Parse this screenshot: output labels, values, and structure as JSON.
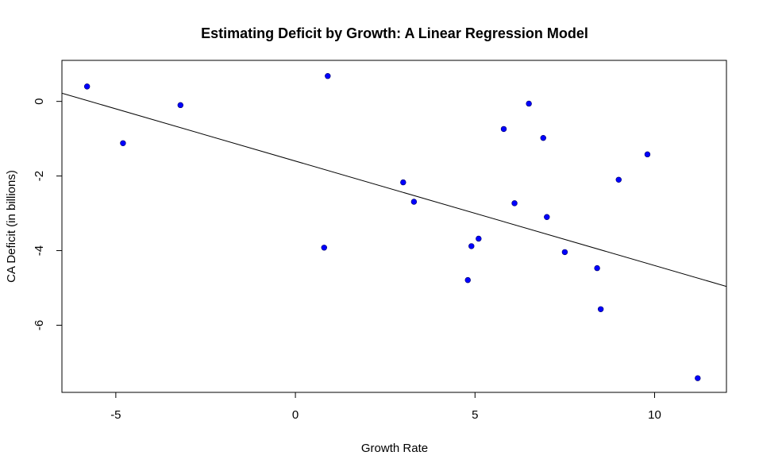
{
  "chart_data": {
    "type": "scatter",
    "title": "Estimating Deficit by Growth: A Linear Regression Model",
    "xlabel": "Growth Rate",
    "ylabel": "CA Deficit (in billions)",
    "xlim": [
      -6.5,
      12
    ],
    "ylim": [
      -7.8,
      1.1
    ],
    "x_ticks": [
      -5,
      0,
      5,
      10
    ],
    "y_ticks": [
      0,
      -2,
      -4,
      -6
    ],
    "point_color": "#0000ff",
    "line_color": "#000000",
    "x": [
      -5.8,
      -4.8,
      -3.2,
      0.8,
      0.9,
      3.0,
      3.3,
      4.8,
      4.9,
      5.1,
      5.8,
      6.1,
      6.5,
      6.9,
      7.0,
      7.5,
      8.4,
      8.5,
      9.0,
      9.8,
      11.2
    ],
    "y": [
      0.4,
      -1.12,
      -0.1,
      -3.92,
      0.68,
      -2.17,
      -2.69,
      -4.79,
      -3.88,
      -3.68,
      -0.74,
      -2.73,
      -0.06,
      -0.98,
      -3.1,
      -4.04,
      -4.47,
      -5.57,
      -2.1,
      -1.42,
      -7.42
    ],
    "regression": {
      "intercept": -1.6,
      "slope": -0.28
    },
    "grid": false,
    "legend": "none"
  }
}
